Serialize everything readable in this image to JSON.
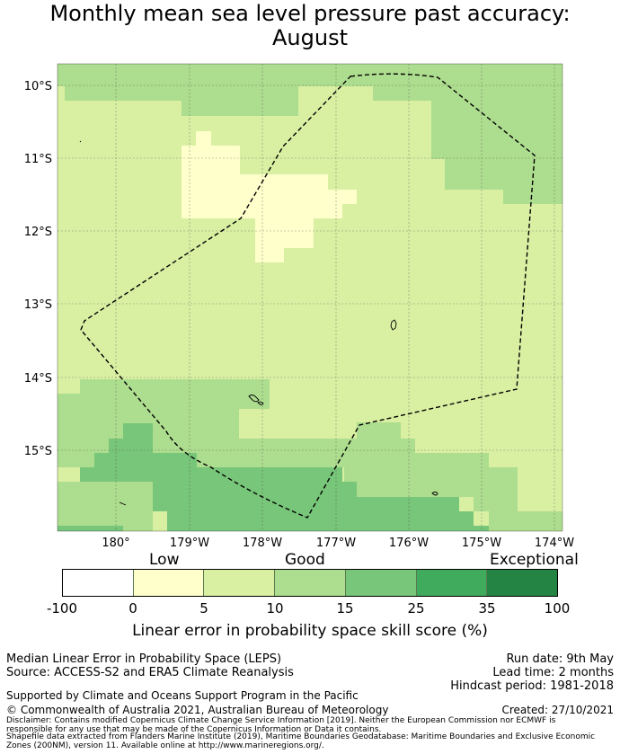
{
  "title_line1": "Monthly mean sea level pressure past accuracy:",
  "title_line2": "August",
  "lat_labels": [
    "10°S",
    "11°S",
    "12°S",
    "13°S",
    "14°S",
    "15°S"
  ],
  "lon_labels": [
    "180°",
    "179°W",
    "178°W",
    "177°W",
    "176°W",
    "175°W",
    "174°W"
  ],
  "colorbar": {
    "categories": [
      "Low",
      "Good",
      "Exceptional"
    ],
    "ticks": [
      "-100",
      "0",
      "5",
      "10",
      "15",
      "25",
      "35",
      "100"
    ],
    "colors": [
      "#ffffff",
      "#ffffcc",
      "#d9f0a3",
      "#addd8e",
      "#78c679",
      "#41ab5d",
      "#238443"
    ],
    "axis_title": "Linear error in probability space skill score (%)"
  },
  "footer": {
    "method": "Median Linear Error in Probability Space (LEPS)",
    "source": "Source: ACCESS-S2 and ERA5 Climate Reanalysis",
    "run_date": "Run date: 9th May",
    "lead_time": "Lead time: 2 months",
    "hindcast": "Hindcast period: 1981-2018",
    "support": "Supported by Climate and Oceans Support Program in the Pacific",
    "copyright": "© Commonwealth of Australia 2021, Australian Bureau of Meteorology",
    "created": "Created: 27/10/2021",
    "disclaimer1": "Disclaimer: Contains modified Copernicus Climate Change Service Information [2019]. Neither the European Commission nor ECMWF is",
    "disclaimer2": "responsible for any use that may be made of the Copernicus Information or Data it contains.",
    "shapefile1": "Shapefile data extracted from Flanders Marine Institute (2019), Maritime Boundaries Geodatabase: Maritime Boundaries and Exclusive Economic",
    "shapefile2": "Zones (200NM), version 11. Available online at http://www.marineregions.org/."
  }
}
